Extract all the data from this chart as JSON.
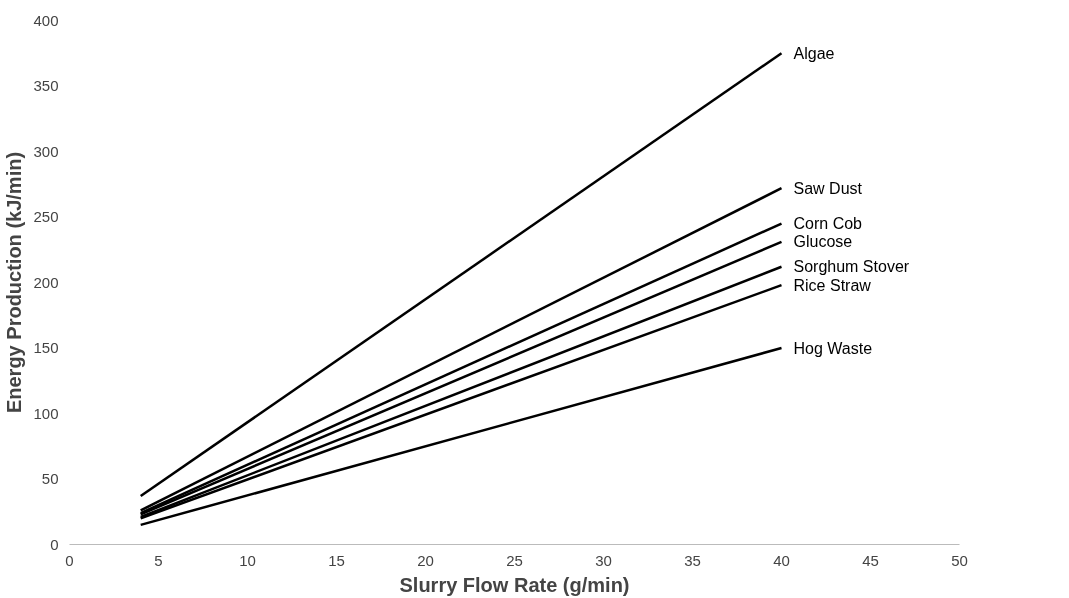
{
  "chart_data": {
    "type": "line",
    "xlabel": "Slurry Flow Rate (g/min)",
    "ylabel": "Energy Production (kJ/min)",
    "x": [
      4,
      40
    ],
    "series": [
      {
        "name": "Algae",
        "color": "#000000",
        "values": [
          37,
          375
        ]
      },
      {
        "name": "Saw Dust",
        "color": "#000000",
        "values": [
          26,
          272
        ]
      },
      {
        "name": "Corn Cob",
        "color": "#000000",
        "values": [
          24,
          245
        ]
      },
      {
        "name": "Glucose",
        "color": "#000000",
        "values": [
          23,
          231
        ]
      },
      {
        "name": "Sorghum Stover",
        "color": "#000000",
        "values": [
          21,
          212
        ]
      },
      {
        "name": "Rice Straw",
        "color": "#000000",
        "values": [
          20,
          198
        ]
      },
      {
        "name": "Hog Waste",
        "color": "#000000",
        "values": [
          15,
          150
        ]
      }
    ],
    "xlim": [
      0,
      50
    ],
    "xticks": [
      0,
      5,
      10,
      15,
      20,
      25,
      30,
      35,
      40,
      45,
      50
    ],
    "ylim": [
      0,
      400
    ],
    "yticks": [
      0,
      50,
      100,
      150,
      200,
      250,
      300,
      350,
      400
    ],
    "grid": false,
    "marker": "none",
    "line_style": "solid"
  }
}
